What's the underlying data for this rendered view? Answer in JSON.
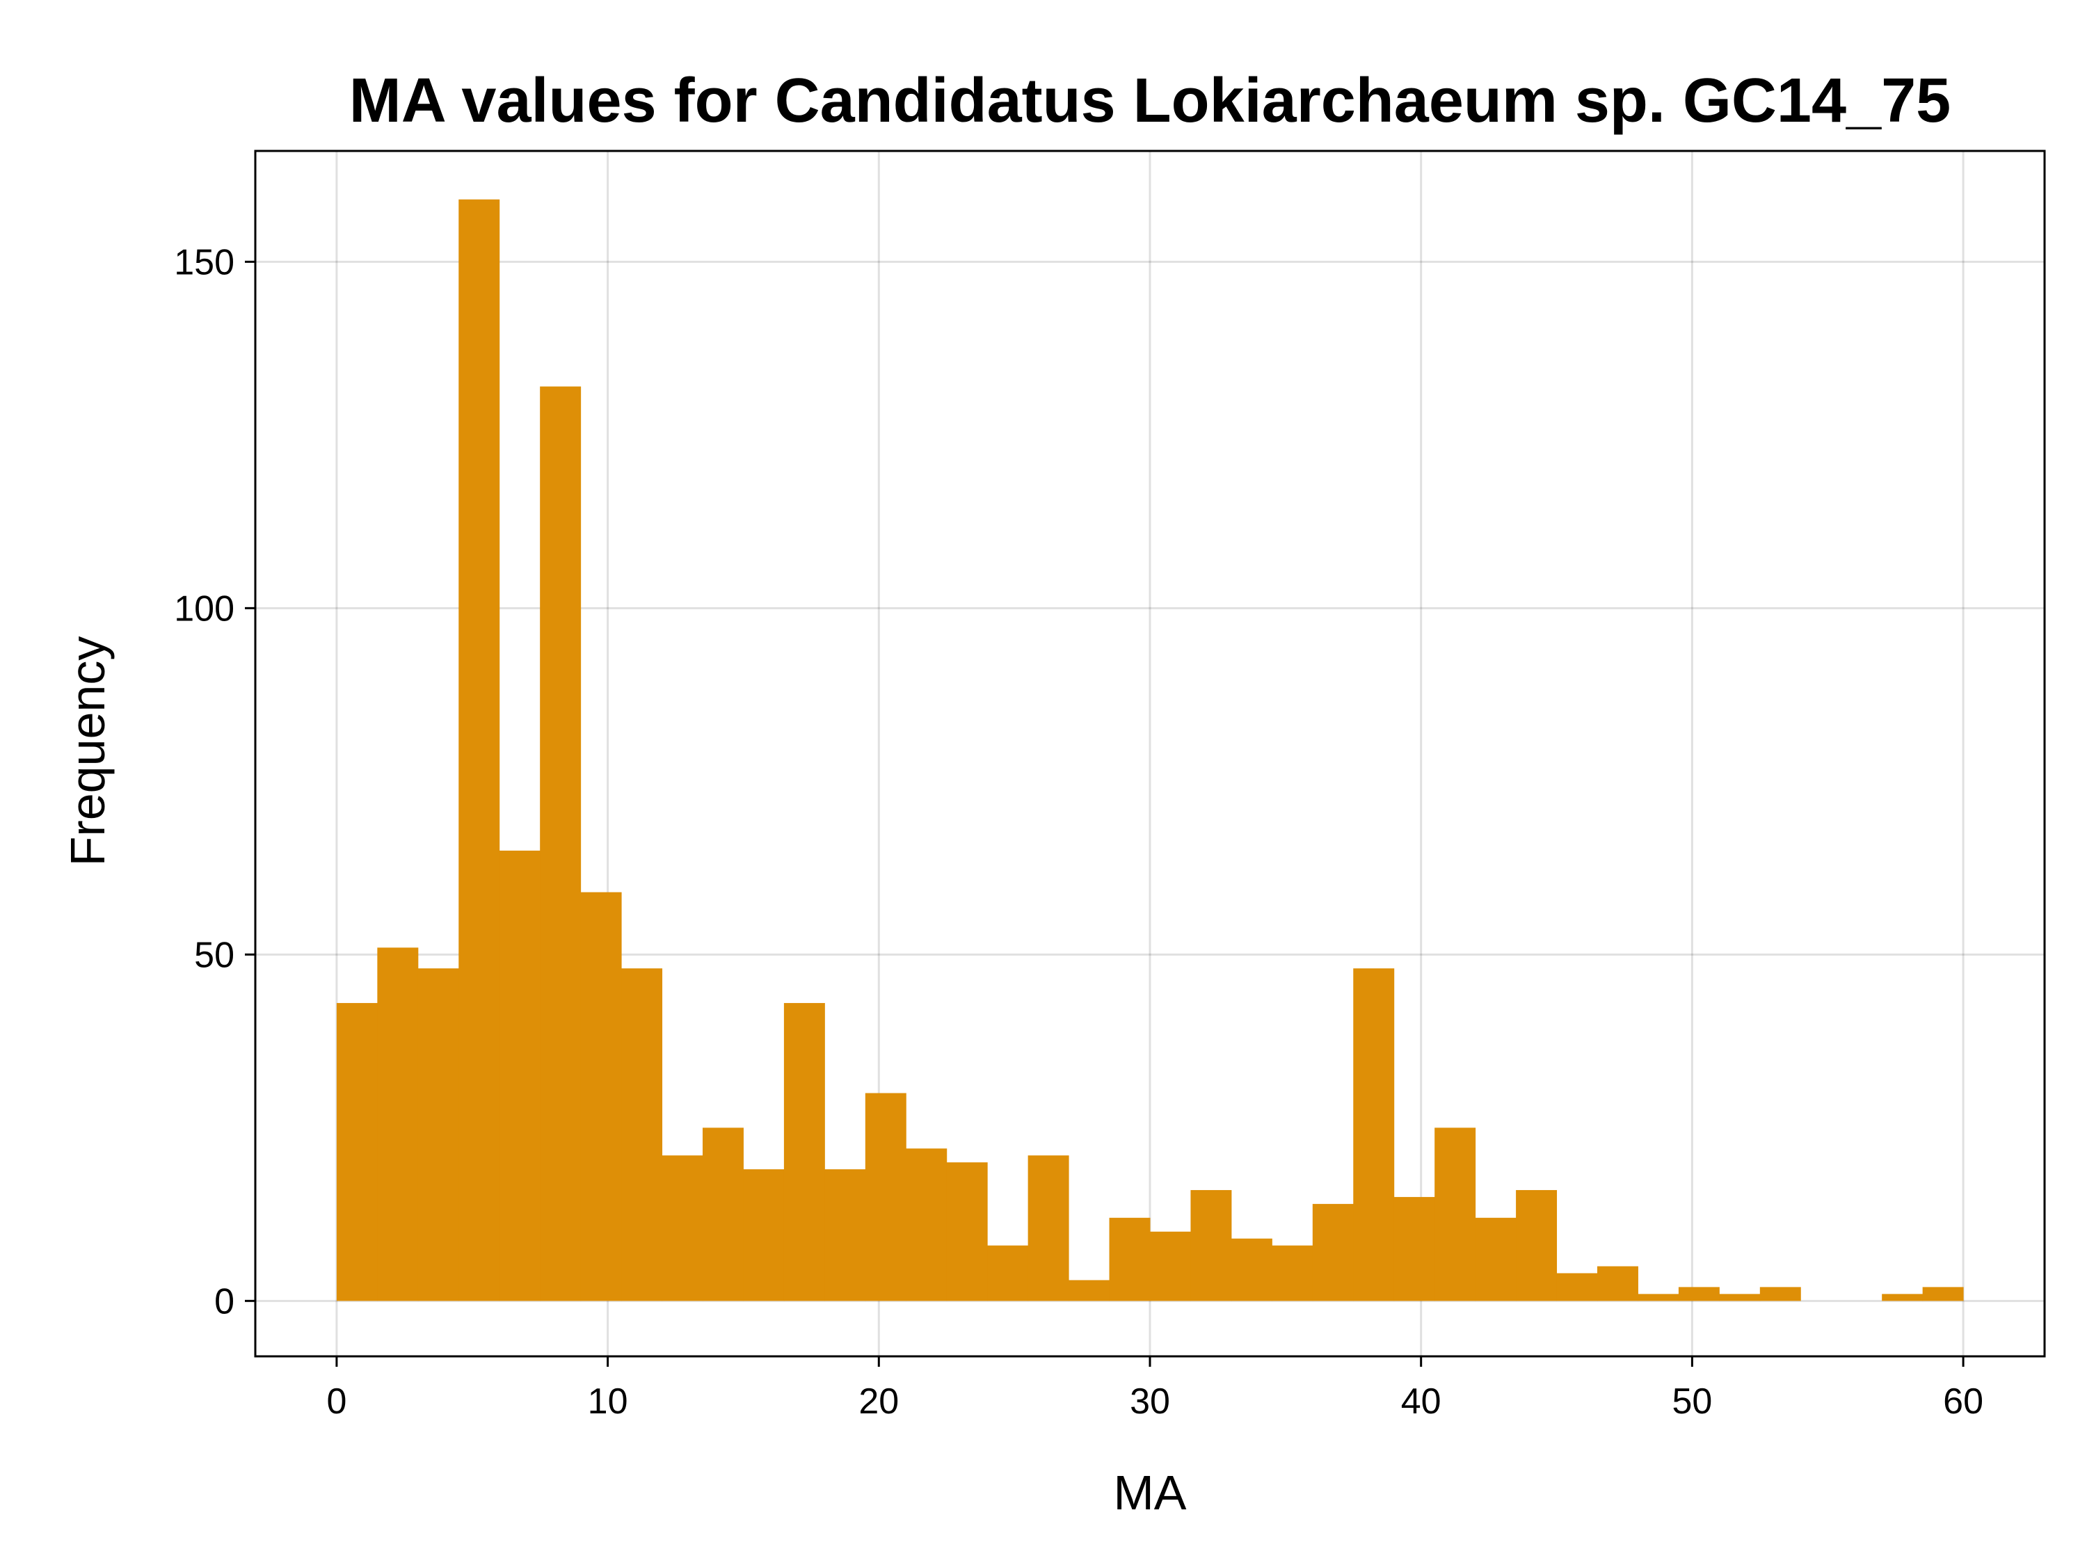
{
  "chart_data": {
    "type": "bar",
    "title": "MA values for Candidatus Lokiarchaeum sp. GC14_75",
    "xlabel": "MA",
    "ylabel": "Frequency",
    "xlim": [
      -3,
      63
    ],
    "ylim": [
      -8,
      166
    ],
    "xticks": [
      0,
      10,
      20,
      30,
      40,
      50,
      60
    ],
    "yticks": [
      0,
      50,
      100,
      150
    ],
    "grid": true,
    "bar_color": "#de8f07",
    "bin_width": 1.5,
    "bins": [
      {
        "x0": 0.0,
        "value": 43
      },
      {
        "x0": 1.5,
        "value": 51
      },
      {
        "x0": 3.0,
        "value": 48
      },
      {
        "x0": 4.5,
        "value": 159
      },
      {
        "x0": 6.0,
        "value": 65
      },
      {
        "x0": 7.5,
        "value": 132
      },
      {
        "x0": 9.0,
        "value": 59
      },
      {
        "x0": 10.5,
        "value": 48
      },
      {
        "x0": 12.0,
        "value": 21
      },
      {
        "x0": 13.5,
        "value": 25
      },
      {
        "x0": 15.0,
        "value": 19
      },
      {
        "x0": 16.5,
        "value": 43
      },
      {
        "x0": 18.0,
        "value": 19
      },
      {
        "x0": 19.5,
        "value": 30
      },
      {
        "x0": 21.0,
        "value": 22
      },
      {
        "x0": 22.5,
        "value": 20
      },
      {
        "x0": 24.0,
        "value": 8
      },
      {
        "x0": 25.5,
        "value": 21
      },
      {
        "x0": 27.0,
        "value": 3
      },
      {
        "x0": 28.5,
        "value": 12
      },
      {
        "x0": 30.0,
        "value": 10
      },
      {
        "x0": 31.5,
        "value": 16
      },
      {
        "x0": 33.0,
        "value": 9
      },
      {
        "x0": 34.5,
        "value": 8
      },
      {
        "x0": 36.0,
        "value": 14
      },
      {
        "x0": 37.5,
        "value": 48
      },
      {
        "x0": 39.0,
        "value": 15
      },
      {
        "x0": 40.5,
        "value": 25
      },
      {
        "x0": 42.0,
        "value": 12
      },
      {
        "x0": 43.5,
        "value": 16
      },
      {
        "x0": 45.0,
        "value": 4
      },
      {
        "x0": 46.5,
        "value": 5
      },
      {
        "x0": 48.0,
        "value": 1
      },
      {
        "x0": 49.5,
        "value": 2
      },
      {
        "x0": 51.0,
        "value": 1
      },
      {
        "x0": 52.5,
        "value": 2
      },
      {
        "x0": 54.0,
        "value": 0
      },
      {
        "x0": 55.5,
        "value": 0
      },
      {
        "x0": 57.0,
        "value": 1
      },
      {
        "x0": 58.5,
        "value": 2
      }
    ]
  }
}
